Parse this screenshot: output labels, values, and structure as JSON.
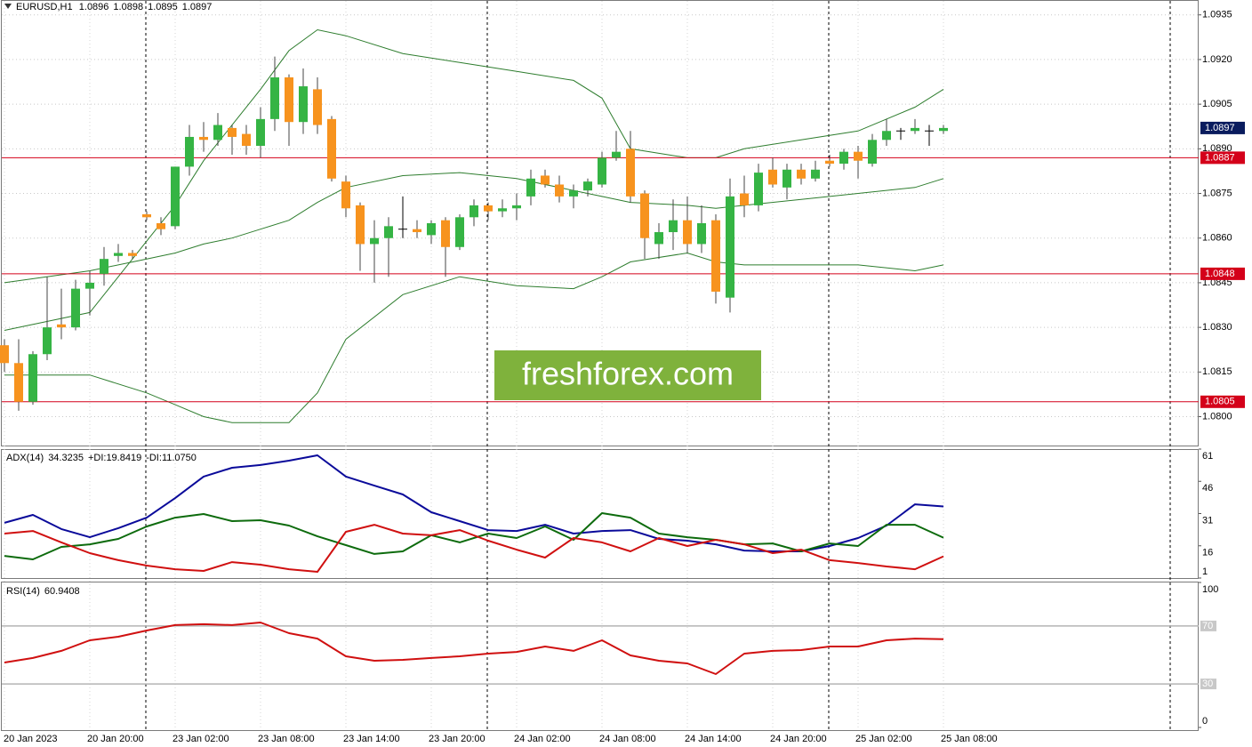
{
  "chart_data": [
    {
      "type": "candlestick",
      "title": "EURUSD,H1",
      "categories": [
        "20 Jan 2023",
        null,
        null,
        null,
        null,
        null,
        "20 Jan 20:00",
        null,
        null,
        null,
        null,
        null,
        "23 Jan 02:00",
        null,
        null,
        null,
        null,
        null,
        "23 Jan 08:00",
        null,
        null,
        null,
        null,
        null,
        "23 Jan 14:00",
        null,
        null,
        null,
        null,
        null,
        "23 Jan 20:00",
        null,
        null,
        null,
        null,
        null,
        "24 Jan 02:00",
        null,
        null,
        null,
        null,
        null,
        "24 Jan 08:00",
        null,
        null,
        null,
        null,
        null,
        "24 Jan 14:00",
        null,
        null,
        null,
        null,
        null,
        "24 Jan 20:00",
        null,
        null,
        null,
        null,
        null,
        "25 Jan 02:00",
        null,
        null,
        null,
        null,
        null,
        "25 Jan 08:00"
      ],
      "open": [
        1.0824,
        1.0818,
        1.0805,
        1.0821,
        1.0831,
        1.083,
        1.0843,
        1.0848,
        1.0854,
        1.0855,
        1.0868,
        1.0865,
        1.0864,
        1.0884,
        1.0894,
        1.0893,
        1.0897,
        1.0895,
        1.0891,
        1.09,
        1.0914,
        1.0899,
        1.091,
        1.09,
        1.0879,
        1.0871,
        1.0858,
        1.086,
        1.0863,
        1.0863,
        1.0861,
        1.0866,
        1.0857,
        1.0867,
        1.0871,
        1.0869,
        1.087,
        1.0874,
        1.0881,
        1.0878,
        1.0874,
        1.0876,
        1.0878,
        1.0887,
        1.089,
        1.0875,
        1.0858,
        1.0862,
        1.0866,
        1.0858,
        1.0866,
        1.084,
        1.0875,
        1.0871,
        1.0883,
        1.0877,
        1.0883,
        1.088,
        1.0886,
        1.0885,
        1.0889,
        1.0885,
        1.0893,
        1.0896,
        1.0896,
        1.0896,
        1.0896
      ],
      "high": [
        1.0826,
        1.0826,
        1.0822,
        1.0847,
        1.0843,
        1.0846,
        1.0849,
        1.0857,
        1.0858,
        1.0856,
        1.0869,
        1.0867,
        1.0884,
        1.0898,
        1.0899,
        1.0902,
        1.0898,
        1.0898,
        1.0904,
        1.0921,
        1.0915,
        1.0917,
        1.0914,
        1.0901,
        1.0881,
        1.0872,
        1.0866,
        1.0867,
        1.0874,
        1.0866,
        1.0866,
        1.0867,
        1.0868,
        1.0873,
        1.0872,
        1.0873,
        1.0875,
        1.0883,
        1.0883,
        1.0881,
        1.0878,
        1.088,
        1.0889,
        1.0896,
        1.0896,
        1.0876,
        1.0865,
        1.0873,
        1.0874,
        1.0871,
        1.0868,
        1.088,
        1.0881,
        1.0885,
        1.0887,
        1.0885,
        1.0885,
        1.0886,
        1.0888,
        1.089,
        1.0891,
        1.0895,
        1.09,
        1.0897,
        1.09,
        1.0898,
        1.0898
      ],
      "low": [
        1.0815,
        1.0802,
        1.0804,
        1.0819,
        1.0826,
        1.0829,
        1.0834,
        1.0844,
        1.0852,
        1.0853,
        1.0866,
        1.0861,
        1.0863,
        1.0881,
        1.0889,
        1.0891,
        1.0888,
        1.0888,
        1.0887,
        1.0896,
        1.0891,
        1.0895,
        1.0895,
        1.0879,
        1.0867,
        1.0849,
        1.0845,
        1.0847,
        1.086,
        1.086,
        1.0858,
        1.0847,
        1.0856,
        1.0864,
        1.0866,
        1.0867,
        1.0866,
        1.0871,
        1.0877,
        1.0872,
        1.087,
        1.0874,
        1.0877,
        1.0886,
        1.0872,
        1.0853,
        1.0853,
        1.0856,
        1.0855,
        1.0855,
        1.0838,
        1.0835,
        1.0867,
        1.0869,
        1.0877,
        1.0873,
        1.0878,
        1.0879,
        1.0884,
        1.0883,
        1.088,
        1.0884,
        1.0891,
        1.0893,
        1.0895,
        1.0891,
        1.0895
      ],
      "close": [
        1.0818,
        1.0805,
        1.0821,
        1.083,
        1.083,
        1.0843,
        1.0845,
        1.0853,
        1.0855,
        1.0854,
        1.0867,
        1.0863,
        1.0884,
        1.0894,
        1.0893,
        1.0898,
        1.0894,
        1.0891,
        1.09,
        1.0914,
        1.0899,
        1.0911,
        1.0898,
        1.088,
        1.087,
        1.0858,
        1.086,
        1.0864,
        1.0863,
        1.0862,
        1.0865,
        1.0857,
        1.0867,
        1.0871,
        1.0869,
        1.087,
        1.0871,
        1.088,
        1.0878,
        1.0874,
        1.0876,
        1.0879,
        1.0887,
        1.0889,
        1.0874,
        1.086,
        1.0862,
        1.0866,
        1.0858,
        1.0865,
        1.0842,
        1.0874,
        1.0871,
        1.0882,
        1.0878,
        1.0883,
        1.088,
        1.0883,
        1.0885,
        1.0889,
        1.0886,
        1.0893,
        1.0896,
        1.0896,
        1.0897,
        1.0896,
        1.0897
      ],
      "up_color": "#35b444",
      "down_color": "#f7931e",
      "doji_color": "#000000",
      "bands": {
        "color": "#2e7d2e",
        "x": [
          0,
          6,
          10,
          12,
          14,
          16,
          18,
          20,
          22,
          24,
          28,
          32,
          36,
          40,
          42,
          44,
          48,
          50,
          52,
          56,
          60,
          64,
          66
        ],
        "upper": [
          1.0829,
          1.0835,
          1.0859,
          1.0871,
          1.0886,
          1.0898,
          1.091,
          1.0923,
          1.093,
          1.0928,
          1.0922,
          1.0919,
          1.0916,
          1.0913,
          1.0907,
          1.089,
          1.0887,
          1.0887,
          1.089,
          1.0893,
          1.0896,
          1.0904,
          1.091
        ],
        "middle": [
          1.0845,
          1.0849,
          1.0853,
          1.0855,
          1.0858,
          1.086,
          1.0863,
          1.0866,
          1.0872,
          1.0877,
          1.0881,
          1.0882,
          1.088,
          1.0876,
          1.0874,
          1.0872,
          1.0871,
          1.087,
          1.0871,
          1.0873,
          1.0875,
          1.0877,
          1.088
        ],
        "lower": [
          1.0814,
          1.0814,
          1.0808,
          1.0804,
          1.08,
          1.0798,
          1.0798,
          1.0798,
          1.0808,
          1.0826,
          1.0841,
          1.0847,
          1.0844,
          1.0843,
          1.0847,
          1.0852,
          1.0855,
          1.0852,
          1.0851,
          1.0851,
          1.0851,
          1.0849,
          1.0851
        ]
      },
      "hlines": [
        1.0887,
        1.0848,
        1.0805
      ],
      "hline_color": "#d4001a",
      "current_color": "#0a1c5e",
      "ylim": [
        1.079,
        1.094
      ],
      "yticks": [
        1.0935,
        {
          "value": 1.092,
          "label": "1.0920"
        },
        1.0905,
        {
          "value": 1.089,
          "label": "1.0890"
        },
        1.0875,
        {
          "value": 1.086,
          "label": "1.0860"
        },
        1.0845,
        {
          "value": 1.083,
          "label": "1.0830"
        },
        1.0815,
        {
          "value": 1.08,
          "label": "1.0800"
        }
      ],
      "grid": true,
      "watermark": "freshforex.com"
    },
    {
      "type": "line",
      "title": "ADX(14)",
      "x": [
        0,
        2,
        4,
        6,
        8,
        10,
        12,
        14,
        16,
        18,
        20,
        22,
        24,
        26,
        28,
        30,
        32,
        34,
        36,
        38,
        40,
        42,
        44,
        46,
        48,
        50,
        52,
        54,
        56,
        58,
        60,
        62,
        64,
        66
      ],
      "series": [
        {
          "color": "#0a0a9a",
          "last": 34.3235,
          "values": [
            26.7,
            30.4,
            23.8,
            20.0,
            24.2,
            29.1,
            38.2,
            48.2,
            52.3,
            53.6,
            55.6,
            58.1,
            48.2,
            44.0,
            39.9,
            31.6,
            27.5,
            23.3,
            22.9,
            25.8,
            21.7,
            22.9,
            23.3,
            19.2,
            18.4,
            16.7,
            13.8,
            13.4,
            13.4,
            15.9,
            19.6,
            25.4,
            35.3,
            34.3
          ]
        },
        {
          "name": "+DI:",
          "color": "#0d6b0d",
          "last": 19.8419,
          "values": [
            11.3,
            9.7,
            15.5,
            16.7,
            19.2,
            25.0,
            29.1,
            30.8,
            27.5,
            27.9,
            25.4,
            20.4,
            16.3,
            12.2,
            13.4,
            20.9,
            17.6,
            21.7,
            19.6,
            25.0,
            18.8,
            31.2,
            29.1,
            21.7,
            20.0,
            18.8,
            16.7,
            17.1,
            13.4,
            17.1,
            15.9,
            25.8,
            25.8,
            19.8
          ]
        },
        {
          "name": "-DI:",
          "color": "#d01010",
          "last": {
            "value": 11.075,
            "label": "11.0750"
          },
          "values": [
            21.7,
            22.9,
            17.6,
            12.6,
            9.3,
            6.8,
            5.1,
            4.3,
            8.4,
            7.2,
            5.1,
            3.9,
            22.5,
            25.8,
            21.7,
            20.9,
            23.3,
            18.4,
            14.2,
            10.5,
            19.6,
            17.6,
            13.4,
            19.6,
            15.9,
            18.8,
            16.7,
            12.6,
            14.2,
            9.3,
            8.0,
            6.4,
            5.1,
            11.1
          ]
        }
      ],
      "ylim": [
        1,
        61
      ],
      "yticks": [
        1,
        16,
        31,
        46,
        61
      ]
    },
    {
      "type": "line",
      "title": "RSI(14)",
      "x": [
        0,
        2,
        4,
        6,
        8,
        10,
        12,
        14,
        16,
        18,
        20,
        22,
        24,
        26,
        28,
        30,
        32,
        34,
        36,
        38,
        40,
        42,
        44,
        46,
        48,
        50,
        52,
        54,
        56,
        58,
        60,
        62,
        64,
        66
      ],
      "series": [
        {
          "color": "#d01010",
          "last": 60.9408,
          "values": [
            44.8,
            47.9,
            52.8,
            60.1,
            62.6,
            66.9,
            70.6,
            71.2,
            70.6,
            72.4,
            65.0,
            61.3,
            49.1,
            46.0,
            46.6,
            47.9,
            49.1,
            50.9,
            52.1,
            55.8,
            52.8,
            60.1,
            49.7,
            46.0,
            44.2,
            36.8,
            50.9,
            52.8,
            53.4,
            55.8,
            55.8,
            60.1,
            61.3,
            60.9
          ]
        }
      ],
      "levels": [
        30,
        70
      ],
      "level_color": "#b4b4b4",
      "ylim": [
        0,
        100
      ],
      "yticks": [
        0,
        100
      ]
    }
  ]
}
